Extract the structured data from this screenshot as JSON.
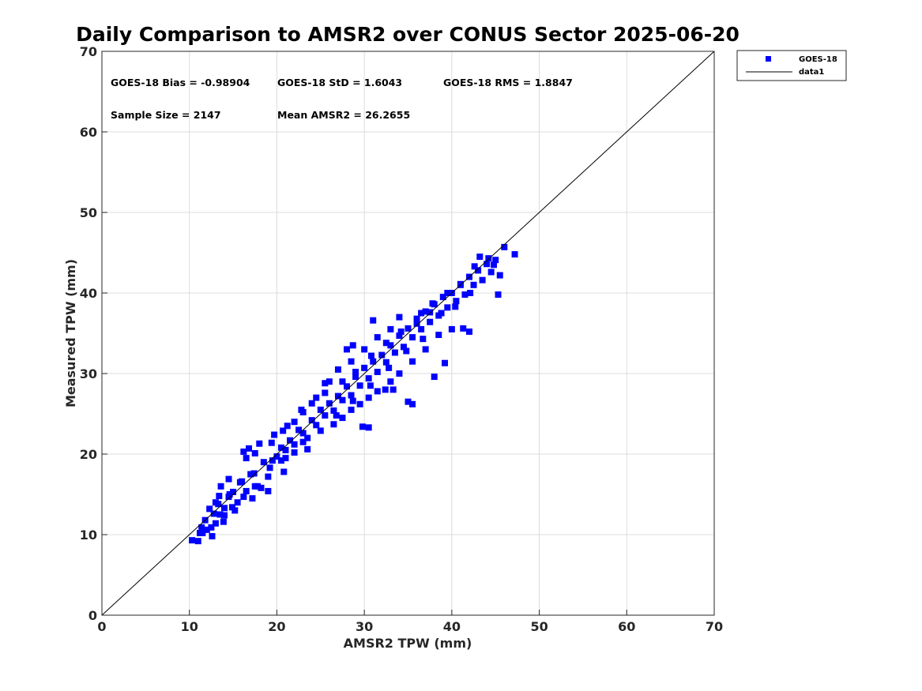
{
  "chart_data": {
    "type": "scatter",
    "title": "Daily Comparison to AMSR2 over CONUS Sector 2025-06-20",
    "xlabel": "AMSR2 TPW (mm)",
    "ylabel": "Measured TPW (mm)",
    "xlim": [
      0,
      70
    ],
    "ylim": [
      0,
      70
    ],
    "xticks": [
      "0",
      "10",
      "20",
      "30",
      "40",
      "50",
      "60",
      "70"
    ],
    "yticks": [
      "0",
      "10",
      "20",
      "30",
      "40",
      "50",
      "60",
      "70"
    ],
    "grid": true,
    "legend_position": "outside-top-right",
    "stats": {
      "bias": "GOES-18 Bias = -0.98904",
      "std": "GOES-18 StD = 1.6043",
      "rms": "GOES-18 RMS = 1.8847",
      "sample_size": "Sample Size = 2147",
      "mean": "Mean AMSR2 = 26.2655"
    },
    "series": [
      {
        "name": "GOES-18",
        "color": "#0000ff",
        "marker": "square",
        "points": [
          [
            10.3,
            9.3
          ],
          [
            11,
            9.2
          ],
          [
            11.5,
            10.2
          ],
          [
            12,
            10.6
          ],
          [
            12.5,
            10.9
          ],
          [
            13,
            11.4
          ],
          [
            11.8,
            11.8
          ],
          [
            12.8,
            12.6
          ],
          [
            13.5,
            12.5
          ],
          [
            14,
            13.3
          ],
          [
            13,
            14
          ],
          [
            14.5,
            14.7
          ],
          [
            15,
            15.3
          ],
          [
            15.5,
            14
          ],
          [
            16,
            16.6
          ],
          [
            16.5,
            15.4
          ],
          [
            17,
            17.5
          ],
          [
            16.5,
            19.5
          ],
          [
            17.5,
            20.1
          ],
          [
            18.5,
            19
          ],
          [
            17.8,
            16
          ],
          [
            19,
            15.4
          ],
          [
            19.5,
            19.2
          ],
          [
            20,
            19.7
          ],
          [
            20.5,
            20.8
          ],
          [
            21,
            20.5
          ],
          [
            21.5,
            21.7
          ],
          [
            20.8,
            17.8
          ],
          [
            22,
            21.2
          ],
          [
            22.5,
            23
          ],
          [
            23,
            22.6
          ],
          [
            23.5,
            22
          ],
          [
            24,
            24.2
          ],
          [
            24.5,
            23.6
          ],
          [
            25,
            25.5
          ],
          [
            25.5,
            24.8
          ],
          [
            26,
            26.3
          ],
          [
            26.5,
            25.4
          ],
          [
            27,
            27.2
          ],
          [
            27.5,
            26.7
          ],
          [
            28,
            28.4
          ],
          [
            28.5,
            27.3
          ],
          [
            29,
            29.6
          ],
          [
            29.5,
            28.5
          ],
          [
            30,
            30.7
          ],
          [
            30.5,
            29.4
          ],
          [
            31,
            31.5
          ],
          [
            31.5,
            30.2
          ],
          [
            32,
            32.3
          ],
          [
            32.5,
            31.4
          ],
          [
            33,
            33.5
          ],
          [
            33.5,
            32.6
          ],
          [
            34,
            34.7
          ],
          [
            34.5,
            33.3
          ],
          [
            35,
            35.6
          ],
          [
            35.5,
            34.5
          ],
          [
            36,
            36.8
          ],
          [
            36.5,
            35.5
          ],
          [
            37,
            37.7
          ],
          [
            37.5,
            36.4
          ],
          [
            38,
            38.6
          ],
          [
            38.5,
            37.2
          ],
          [
            39,
            39.5
          ],
          [
            39.5,
            38.2
          ],
          [
            40,
            40
          ],
          [
            40.5,
            39
          ],
          [
            41,
            41.1
          ],
          [
            41.5,
            39.8
          ],
          [
            42,
            42
          ],
          [
            42.5,
            41
          ],
          [
            43,
            42.8
          ],
          [
            43.5,
            41.6
          ],
          [
            44,
            43.6
          ],
          [
            44.5,
            42.6
          ],
          [
            45,
            44.1
          ],
          [
            45.5,
            42.2
          ],
          [
            46,
            45.7
          ],
          [
            47.2,
            44.8
          ],
          [
            45.3,
            39.8
          ],
          [
            43.2,
            44.5
          ],
          [
            42,
            35.2
          ],
          [
            41.3,
            35.6
          ],
          [
            39.2,
            31.3
          ],
          [
            38,
            29.6
          ],
          [
            35.5,
            26.2
          ],
          [
            35,
            26.5
          ],
          [
            30.5,
            23.3
          ],
          [
            29.8,
            23.4
          ],
          [
            31,
            36.6
          ],
          [
            28.7,
            33.5
          ],
          [
            28,
            33
          ],
          [
            34,
            37
          ],
          [
            36.5,
            37.5
          ],
          [
            37.5,
            37.6
          ],
          [
            33.3,
            28
          ],
          [
            32.4,
            28
          ],
          [
            24.5,
            27
          ],
          [
            25.5,
            28.8
          ],
          [
            22,
            24
          ],
          [
            22.8,
            25.5
          ],
          [
            20.7,
            22.9
          ],
          [
            19.4,
            21.4
          ],
          [
            16.8,
            20.7
          ],
          [
            16.2,
            20.3
          ],
          [
            18.2,
            15.8
          ],
          [
            17.2,
            14.5
          ],
          [
            14.9,
            13.4
          ],
          [
            14.5,
            16.9
          ],
          [
            13.6,
            16
          ],
          [
            13.3,
            13.8
          ],
          [
            13.9,
            11.6
          ],
          [
            12.6,
            9.8
          ],
          [
            11.4,
            10.9
          ],
          [
            26.5,
            23.7
          ],
          [
            27.5,
            24.5
          ],
          [
            28.5,
            25.5
          ],
          [
            29.5,
            26.2
          ],
          [
            30.5,
            27
          ],
          [
            31.5,
            27.8
          ],
          [
            33,
            29
          ],
          [
            34,
            30
          ],
          [
            35.5,
            31.5
          ],
          [
            37,
            33
          ],
          [
            38.5,
            34.8
          ],
          [
            40,
            35.5
          ],
          [
            24,
            26.3
          ],
          [
            26,
            29
          ],
          [
            27,
            30.5
          ],
          [
            28.5,
            31.5
          ],
          [
            30,
            33
          ],
          [
            31.5,
            34.5
          ],
          [
            33,
            35.5
          ],
          [
            23.5,
            20.6
          ],
          [
            22,
            20.2
          ],
          [
            20.5,
            19.2
          ],
          [
            19,
            17.2
          ],
          [
            17.5,
            16
          ],
          [
            16.2,
            14.7
          ],
          [
            15.2,
            13
          ],
          [
            14,
            12.4
          ],
          [
            18,
            21.3
          ],
          [
            19.7,
            22.4
          ],
          [
            21.2,
            23.5
          ],
          [
            23,
            25.2
          ],
          [
            25.5,
            27.6
          ],
          [
            27.5,
            29
          ],
          [
            29,
            30.2
          ],
          [
            30.8,
            32.2
          ],
          [
            32.5,
            33.8
          ],
          [
            34.2,
            35.2
          ],
          [
            36,
            36.2
          ],
          [
            37.8,
            38.7
          ],
          [
            39.5,
            40
          ],
          [
            41,
            41
          ],
          [
            42.6,
            43.3
          ],
          [
            44.2,
            44.3
          ],
          [
            44.8,
            43.5
          ],
          [
            38.8,
            37.5
          ],
          [
            40.4,
            38.3
          ],
          [
            42.1,
            40
          ],
          [
            36.7,
            34.3
          ],
          [
            34.8,
            32.8
          ],
          [
            32.8,
            30.7
          ],
          [
            30.7,
            28.5
          ],
          [
            28.7,
            26.6
          ],
          [
            26.8,
            24.8
          ],
          [
            25,
            22.9
          ],
          [
            23,
            21.5
          ],
          [
            21,
            19.5
          ],
          [
            19.2,
            18.3
          ],
          [
            17.4,
            17.6
          ],
          [
            15.8,
            16.5
          ],
          [
            14.6,
            15
          ],
          [
            13.4,
            14.8
          ],
          [
            12.3,
            13.2
          ],
          [
            11.2,
            10.2
          ]
        ]
      },
      {
        "name": "data1",
        "color": "#000000",
        "type": "line",
        "points": [
          [
            0,
            0
          ],
          [
            70,
            70
          ]
        ]
      }
    ]
  }
}
